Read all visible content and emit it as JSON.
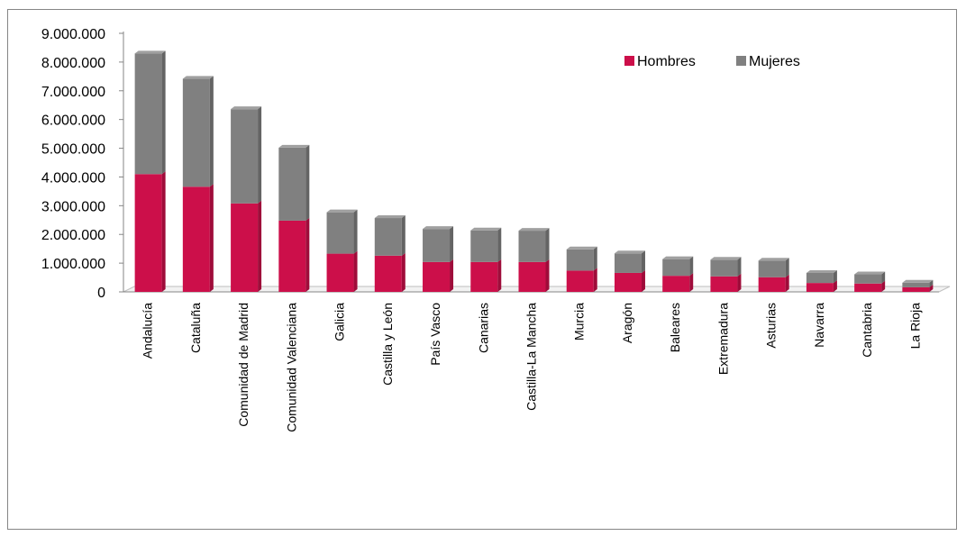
{
  "chart_data": {
    "type": "bar",
    "stacked": true,
    "categories": [
      "Andalucía",
      "Cataluña",
      "Comunidad de Madrid",
      "Comunidad Valenciana",
      "Galicia",
      "Castilla y León",
      "País Vasco",
      "Canarias",
      "Castilla-La Mancha",
      "Murcia",
      "Aragón",
      "Baleares",
      "Extremadura",
      "Asturias",
      "Navarra",
      "Cantabria",
      "La Rioja"
    ],
    "series": [
      {
        "name": "Hombres",
        "color": "#cc0f4a",
        "values": [
          4100000,
          3660000,
          3080000,
          2480000,
          1330000,
          1260000,
          1040000,
          1040000,
          1040000,
          740000,
          660000,
          560000,
          540000,
          510000,
          310000,
          290000,
          160000
        ]
      },
      {
        "name": "Mujeres",
        "color": "#808080",
        "values": [
          4200000,
          3760000,
          3280000,
          2540000,
          1440000,
          1310000,
          1150000,
          1100000,
          1090000,
          740000,
          680000,
          580000,
          580000,
          580000,
          350000,
          320000,
          160000
        ]
      }
    ],
    "y_ticks": [
      "0",
      "1.000.000",
      "2.000.000",
      "3.000.000",
      "4.000.000",
      "5.000.000",
      "6.000.000",
      "7.000.000",
      "8.000.000",
      "9.000.000"
    ],
    "ylim": [
      0,
      9000000
    ],
    "grid": false,
    "legend_position": "top-right"
  }
}
